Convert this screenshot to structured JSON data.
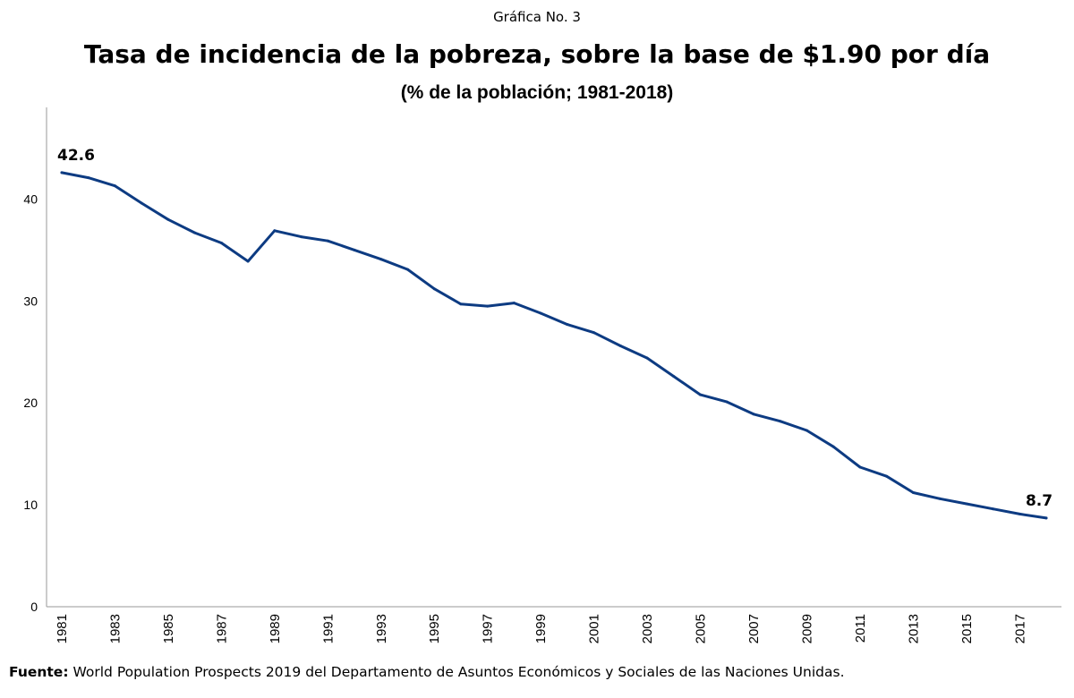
{
  "header": {
    "figure_number": "Gráfica No. 3",
    "title": "Tasa de incidencia de la pobreza, sobre la base de $1.90 por día",
    "subtitle": "(% de la población; 1981-2018)"
  },
  "footer": {
    "source_label": "Fuente:",
    "source_text": "World Population Prospects 2019 del Departamento de Asuntos Económicos y Sociales de las Naciones Unidas."
  },
  "colors": {
    "line": "#0d3b82",
    "axis": "#9a9a9a"
  },
  "chart_data": {
    "type": "line",
    "title": "Tasa de incidencia de la pobreza, sobre la base de $1.90 por día",
    "subtitle": "(% de la población; 1981-2018)",
    "xlabel": "",
    "ylabel": "",
    "ylim": [
      0,
      49
    ],
    "yticks": [
      0,
      10,
      20,
      30,
      40
    ],
    "ytick_labels": [
      "0",
      "10",
      "20",
      "30",
      "40"
    ],
    "xlim": [
      1981,
      2018
    ],
    "xticks": [
      1981,
      1983,
      1985,
      1987,
      1989,
      1991,
      1993,
      1995,
      1997,
      1999,
      2001,
      2003,
      2005,
      2007,
      2009,
      2011,
      2013,
      2015,
      2017
    ],
    "xtick_labels": [
      "1981",
      "1983",
      "1985",
      "1987",
      "1989",
      "1991",
      "1993",
      "1995",
      "1997",
      "1999",
      "2001",
      "2003",
      "2005",
      "2007",
      "2009",
      "2011",
      "2013",
      "2015",
      "2017"
    ],
    "grid": false,
    "legend": "none",
    "series": [
      {
        "name": "Tasa de incidencia de la pobreza",
        "x": [
          1981,
          1982,
          1983,
          1984,
          1985,
          1986,
          1987,
          1988,
          1989,
          1990,
          1991,
          1992,
          1993,
          1994,
          1995,
          1996,
          1997,
          1998,
          1999,
          2000,
          2001,
          2002,
          2003,
          2004,
          2005,
          2006,
          2007,
          2008,
          2009,
          2010,
          2011,
          2012,
          2013,
          2014,
          2015,
          2016,
          2017,
          2018
        ],
        "values": [
          42.6,
          42.1,
          41.3,
          39.6,
          38.0,
          36.7,
          35.7,
          33.9,
          36.9,
          36.3,
          35.9,
          35.0,
          34.1,
          33.1,
          31.2,
          29.7,
          29.5,
          29.8,
          28.8,
          27.7,
          26.9,
          25.6,
          24.4,
          22.6,
          20.8,
          20.1,
          18.9,
          18.2,
          17.3,
          15.7,
          13.7,
          12.8,
          11.2,
          10.6,
          10.1,
          9.6,
          9.1,
          8.7
        ]
      }
    ],
    "annotations": [
      {
        "x": 1981,
        "y": 42.6,
        "text": "42.6"
      },
      {
        "x": 2018,
        "y": 8.7,
        "text": "8.7"
      }
    ]
  }
}
